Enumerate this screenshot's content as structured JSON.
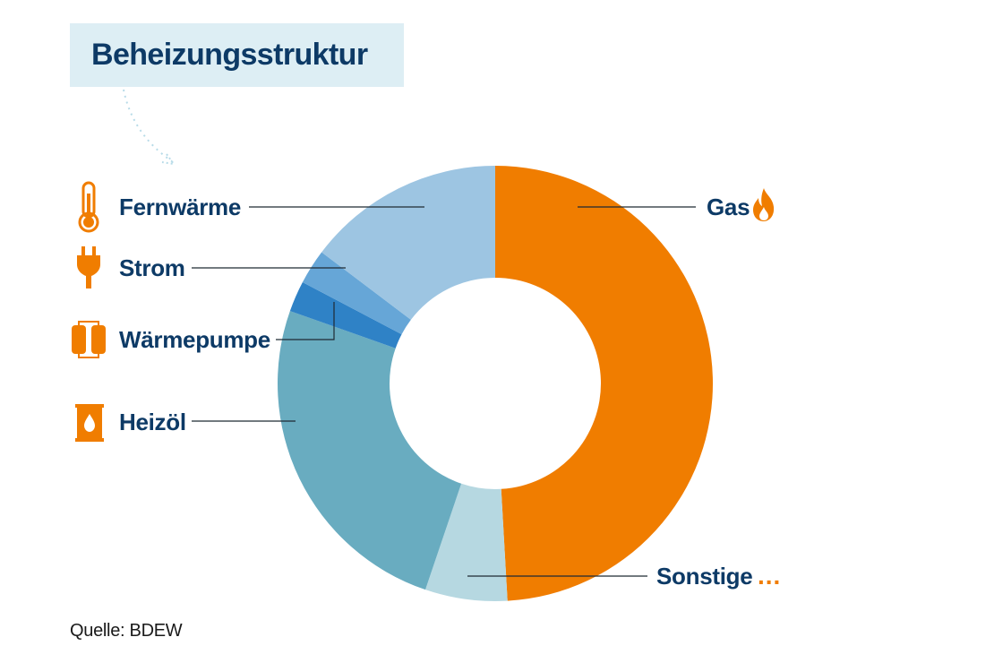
{
  "title": "Beheizungsstruktur",
  "source": "Quelle: BDEW",
  "more_marker": "...",
  "colors": {
    "accent": "#f07d00",
    "text": "#0d3a66",
    "title_bg": "#ddeef4"
  },
  "icons": {
    "gas": "flame-icon",
    "fernwaerme": "thermometer-icon",
    "strom": "plug-icon",
    "waermepumpe": "heat-pump-icon",
    "heizoel": "oil-barrel-icon"
  },
  "chart_data": {
    "type": "pie",
    "variant": "donut",
    "start_angle_deg": 0,
    "direction": "clockwise",
    "legend": "none",
    "labels": [
      "Gas",
      "Sonstige",
      "Heizöl",
      "Wärmepumpe",
      "Strom",
      "Fernwärme"
    ],
    "values": [
      49.1,
      6.1,
      25.2,
      2.3,
      2.6,
      14.7
    ],
    "colors": [
      "#f07d00",
      "#b6d8e1",
      "#69acc0",
      "#2f82c6",
      "#66a6d7",
      "#9dc5e2"
    ]
  }
}
